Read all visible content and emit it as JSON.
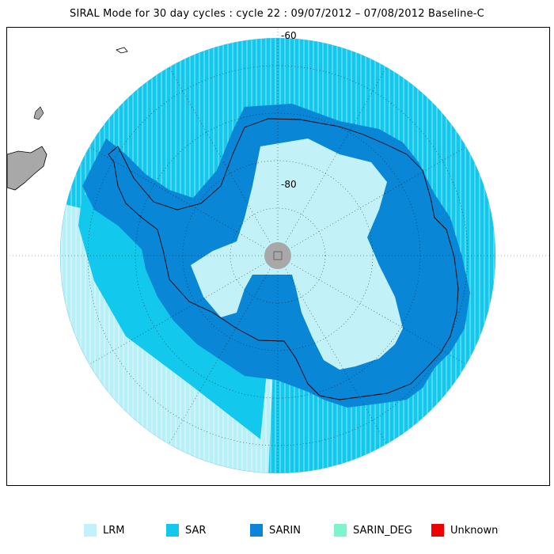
{
  "title": "SIRAL Mode for 30 day cycles : cycle 22 : 09/07/2012 – 07/08/2012 Baseline-C",
  "map": {
    "lat_labels": [
      "-60",
      "-80"
    ],
    "colors": {
      "ocean_background": "#ffffff",
      "land_outside": "#a8a8a8",
      "pole_hole": "#a8a8a8",
      "graticule": "#000000"
    }
  },
  "legend": [
    {
      "label": "LRM",
      "color": "#c2f2f8"
    },
    {
      "label": "SAR",
      "color": "#12c8ec"
    },
    {
      "label": "SARIN",
      "color": "#0a86d6"
    },
    {
      "label": "SARIN_DEG",
      "color": "#80f2cc"
    },
    {
      "label": "Unknown",
      "color": "#ee0000"
    }
  ]
}
